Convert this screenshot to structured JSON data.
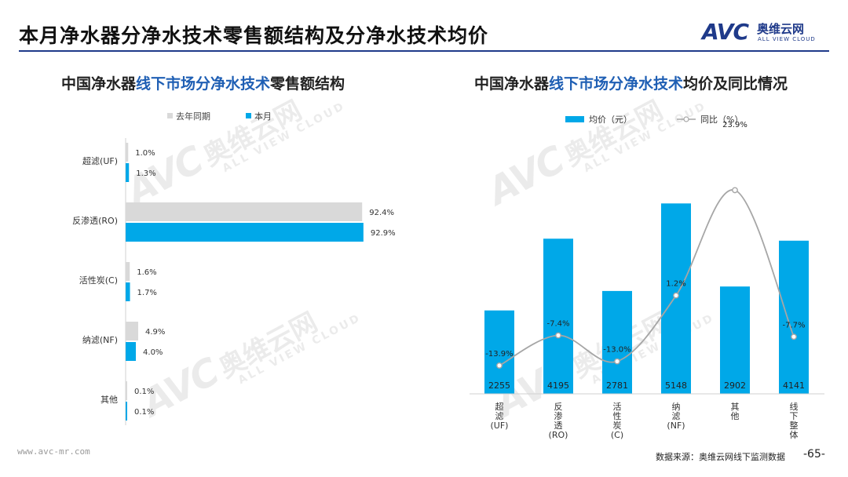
{
  "header": {
    "title": "本月净水器分净水技术零售额结构及分净水技术均价",
    "logo_mark": "AVC",
    "logo_name": "奥维云网",
    "logo_en": "ALL VIEW CLOUD"
  },
  "watermark": {
    "mark": "AVC",
    "name": "奥维云网",
    "en": "ALL VIEW CLOUD"
  },
  "left_title": {
    "pre": "中国净水器",
    "hl": "线下市场分净水技术",
    "post": "零售额结构"
  },
  "right_title": {
    "pre": "中国净水器",
    "hl": "线下市场分净水技术",
    "post": "均价及同比情况"
  },
  "colors": {
    "last_year": "#d9d9d9",
    "this_month": "#00a8e8",
    "yoy_line": "#a6a6a6",
    "brand": "#1f3a8a",
    "highlight": "#1f5fb4"
  },
  "chart_data": [
    {
      "type": "bar",
      "orientation": "horizontal",
      "categories": [
        "超滤(UF)",
        "反渗透(RO)",
        "活性炭(C)",
        "纳滤(NF)",
        "其他"
      ],
      "series": [
        {
          "name": "去年同期",
          "values": [
            1.0,
            92.4,
            1.6,
            4.9,
            0.1
          ],
          "labels": [
            "1.0%",
            "92.4%",
            "1.6%",
            "4.9%",
            "0.1%"
          ]
        },
        {
          "name": "本月",
          "values": [
            1.3,
            92.9,
            1.7,
            4.0,
            0.1
          ],
          "labels": [
            "1.3%",
            "92.9%",
            "1.7%",
            "4.0%",
            "0.1%"
          ]
        }
      ],
      "xlim": [
        0,
        100
      ],
      "legend": "top"
    },
    {
      "type": "bar+line",
      "categories": [
        "超滤(UF)",
        "反渗透(RO)",
        "活性炭(C)",
        "纳滤(NF)",
        "其他",
        "线下整体"
      ],
      "category_labels": [
        [
          "超",
          "滤",
          "(UF)"
        ],
        [
          "反",
          "渗",
          "透",
          "(RO)"
        ],
        [
          "活",
          "性",
          "炭",
          "(C)"
        ],
        [
          "纳",
          "滤",
          "(NF)"
        ],
        [
          "其",
          "他"
        ],
        [
          "线",
          "下",
          "整",
          "体"
        ]
      ],
      "series": [
        {
          "name": "均价（元）",
          "type": "bar",
          "values": [
            2255,
            4195,
            2781,
            5148,
            2902,
            4141
          ],
          "labels": [
            "2255",
            "4195",
            "2781",
            "5148",
            "2902",
            "4141"
          ]
        },
        {
          "name": "同比（%）",
          "type": "line",
          "values": [
            -13.9,
            -7.4,
            -13.0,
            1.2,
            23.9,
            -7.7
          ],
          "labels": [
            "-13.9%",
            "-7.4%",
            "-13.0%",
            "1.2%",
            "23.9%",
            "-7.7%"
          ]
        }
      ],
      "ylim_price": [
        0,
        5600
      ],
      "ylim_yoy": [
        -20,
        26
      ],
      "legend": "top"
    }
  ],
  "footer": {
    "url": "www.avc-mr.com",
    "source": "数据来源：奥维云网线下监测数据",
    "page": "-65-"
  }
}
